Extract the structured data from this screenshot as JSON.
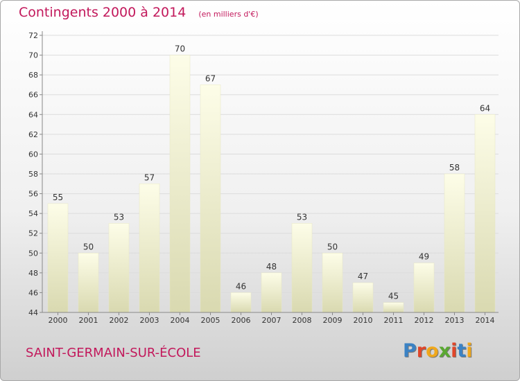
{
  "header": {
    "title": "Contingents 2000 à 2014",
    "subtitle": "(en milliers d'€)"
  },
  "footer": {
    "town": "SAINT-GERMAIN-SUR-ÉCOLE",
    "logo_letters": [
      "P",
      "r",
      "o",
      "x",
      "i",
      "t",
      "i"
    ],
    "logo_colors": [
      "#3b82c4",
      "#e0462a",
      "#f0a81c",
      "#5aa832",
      "#e0462a",
      "#3b82c4",
      "#f0a81c"
    ]
  },
  "chart_data": {
    "type": "bar",
    "title": "Contingents 2000 à 2014",
    "subtitle": "(en milliers d'€)",
    "categories": [
      "2000",
      "2001",
      "2002",
      "2003",
      "2004",
      "2005",
      "2006",
      "2007",
      "2008",
      "2009",
      "2010",
      "2011",
      "2012",
      "2013",
      "2014"
    ],
    "values": [
      55,
      50,
      53,
      57,
      70,
      67,
      46,
      48,
      53,
      50,
      47,
      45,
      49,
      58,
      64
    ],
    "labels": [
      "55",
      "50",
      "53",
      "57",
      "70",
      "67",
      "46",
      "48",
      "53",
      "50",
      "47",
      "45",
      "49",
      "58",
      "64"
    ],
    "yticks": [
      "44",
      "46",
      "48",
      "50",
      "52",
      "54",
      "56",
      "58",
      "60",
      "62",
      "64",
      "66",
      "68",
      "70",
      "72"
    ],
    "ylim": [
      44,
      72
    ],
    "grid": true,
    "xlabel": "",
    "ylabel": "",
    "bar_color": "#f5f5cc"
  }
}
